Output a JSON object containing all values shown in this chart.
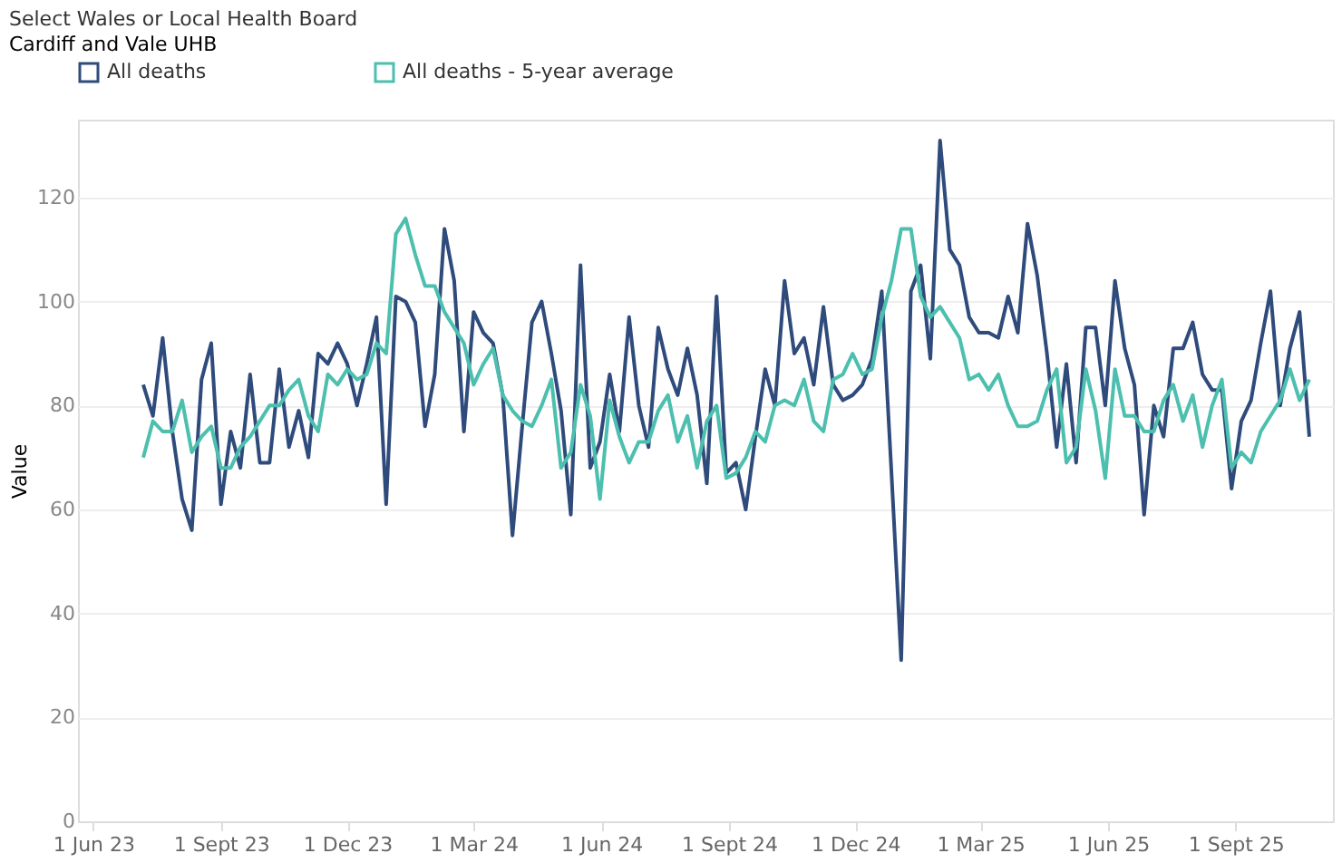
{
  "chart_data": {
    "type": "line",
    "title": "Select Wales or Local Health Board",
    "subtitle": "Cardiff and Vale UHB",
    "ylabel": "Value",
    "x": [
      "2023-07-07",
      "2023-07-14",
      "2023-07-21",
      "2023-07-28",
      "2023-08-04",
      "2023-08-11",
      "2023-08-18",
      "2023-08-25",
      "2023-09-01",
      "2023-09-08",
      "2023-09-15",
      "2023-09-22",
      "2023-09-29",
      "2023-10-06",
      "2023-10-13",
      "2023-10-20",
      "2023-10-27",
      "2023-11-03",
      "2023-11-10",
      "2023-11-17",
      "2023-11-24",
      "2023-12-01",
      "2023-12-08",
      "2023-12-15",
      "2023-12-22",
      "2023-12-29",
      "2024-01-05",
      "2024-01-12",
      "2024-01-19",
      "2024-01-26",
      "2024-02-02",
      "2024-02-09",
      "2024-02-16",
      "2024-02-23",
      "2024-03-01",
      "2024-03-08",
      "2024-03-15",
      "2024-03-22",
      "2024-03-29",
      "2024-04-05",
      "2024-04-12",
      "2024-04-19",
      "2024-04-26",
      "2024-05-03",
      "2024-05-10",
      "2024-05-17",
      "2024-05-24",
      "2024-05-31",
      "2024-06-07",
      "2024-06-14",
      "2024-06-21",
      "2024-06-28",
      "2024-07-05",
      "2024-07-12",
      "2024-07-19",
      "2024-07-26",
      "2024-08-02",
      "2024-08-09",
      "2024-08-16",
      "2024-08-23",
      "2024-08-30",
      "2024-09-06",
      "2024-09-13",
      "2024-09-20",
      "2024-09-27",
      "2024-10-04",
      "2024-10-11",
      "2024-10-18",
      "2024-10-25",
      "2024-11-01",
      "2024-11-08",
      "2024-11-15",
      "2024-11-22",
      "2024-11-29",
      "2024-12-06",
      "2024-12-13",
      "2024-12-20",
      "2024-12-27",
      "2025-01-03",
      "2025-01-10",
      "2025-01-17",
      "2025-01-24",
      "2025-01-31",
      "2025-02-07",
      "2025-02-14",
      "2025-02-21",
      "2025-02-28",
      "2025-03-07",
      "2025-03-14",
      "2025-03-21",
      "2025-03-28",
      "2025-04-04",
      "2025-04-11",
      "2025-04-18",
      "2025-04-25",
      "2025-05-02",
      "2025-05-09",
      "2025-05-16",
      "2025-05-23",
      "2025-05-30",
      "2025-06-06",
      "2025-06-13",
      "2025-06-20",
      "2025-06-27",
      "2025-07-04",
      "2025-07-11",
      "2025-07-18",
      "2025-07-25",
      "2025-08-01",
      "2025-08-08",
      "2025-08-15",
      "2025-08-22",
      "2025-08-29",
      "2025-09-05",
      "2025-09-12",
      "2025-09-19",
      "2025-09-26",
      "2025-10-03",
      "2025-10-10",
      "2025-10-17",
      "2025-10-24"
    ],
    "series": [
      {
        "name": "All deaths",
        "color": "#2f4b7c",
        "values": [
          84,
          78,
          93,
          75,
          62,
          56,
          85,
          92,
          61,
          75,
          68,
          86,
          69,
          69,
          87,
          72,
          79,
          70,
          90,
          88,
          92,
          88,
          80,
          88,
          97,
          61,
          101,
          100,
          96,
          76,
          86,
          114,
          104,
          75,
          98,
          94,
          92,
          82,
          55,
          76,
          96,
          100,
          90,
          79,
          59,
          107,
          68,
          73,
          86,
          75,
          97,
          80,
          72,
          95,
          87,
          82,
          91,
          82,
          65,
          101,
          67,
          69,
          60,
          74,
          87,
          80,
          104,
          90,
          93,
          84,
          99,
          84,
          81,
          82,
          84,
          89,
          102,
          67,
          31,
          102,
          107,
          89,
          131,
          110,
          107,
          97,
          94,
          94,
          93,
          101,
          94,
          115,
          105,
          90,
          72,
          88,
          69,
          95,
          95,
          80,
          104,
          91,
          84,
          59,
          80,
          74,
          91,
          91,
          96,
          86,
          83,
          83,
          64,
          77,
          81,
          92,
          102,
          80,
          91,
          98,
          74
        ]
      },
      {
        "name": "All deaths - 5-year average",
        "color": "#4cbfae",
        "values": [
          70,
          77,
          75,
          75,
          81,
          71,
          74,
          76,
          68,
          68,
          72,
          74,
          77,
          80,
          80,
          83,
          85,
          78,
          75,
          86,
          84,
          87,
          85,
          86,
          92,
          90,
          113,
          116,
          109,
          103,
          103,
          98,
          95,
          92,
          84,
          88,
          91,
          82,
          79,
          77,
          76,
          80,
          85,
          68,
          71,
          84,
          78,
          62,
          81,
          74,
          69,
          73,
          73,
          79,
          82,
          73,
          78,
          68,
          77,
          80,
          66,
          67,
          70,
          75,
          73,
          80,
          81,
          80,
          85,
          77,
          75,
          85,
          86,
          90,
          86,
          87,
          97,
          104,
          114,
          114,
          101,
          97,
          99,
          96,
          93,
          85,
          86,
          83,
          86,
          80,
          76,
          76,
          77,
          83,
          87,
          69,
          72,
          87,
          79,
          66,
          87,
          78,
          78,
          75,
          75,
          81,
          84,
          77,
          82,
          72,
          80,
          85,
          68,
          71,
          69,
          75,
          78,
          81,
          87,
          81,
          85
        ]
      }
    ],
    "xlim": [
      "2023-05-21",
      "2025-11-10"
    ],
    "xticks": [
      {
        "value": "2023-06-01",
        "label": "1 Jun 23"
      },
      {
        "value": "2023-09-01",
        "label": "1 Sept 23"
      },
      {
        "value": "2023-12-01",
        "label": "1 Dec 23"
      },
      {
        "value": "2024-03-01",
        "label": "1 Mar 24"
      },
      {
        "value": "2024-06-01",
        "label": "1 Jun 24"
      },
      {
        "value": "2024-09-01",
        "label": "1 Sept 24"
      },
      {
        "value": "2024-12-01",
        "label": "1 Dec 24"
      },
      {
        "value": "2025-03-01",
        "label": "1 Mar 25"
      },
      {
        "value": "2025-06-01",
        "label": "1 Jun 25"
      },
      {
        "value": "2025-09-01",
        "label": "1 Sept 25"
      }
    ],
    "ylim": [
      0,
      135
    ],
    "yticks": [
      0,
      20,
      40,
      60,
      80,
      100,
      120
    ],
    "grid": "y",
    "legend": "top",
    "marker": "none",
    "line_style": "solid"
  }
}
